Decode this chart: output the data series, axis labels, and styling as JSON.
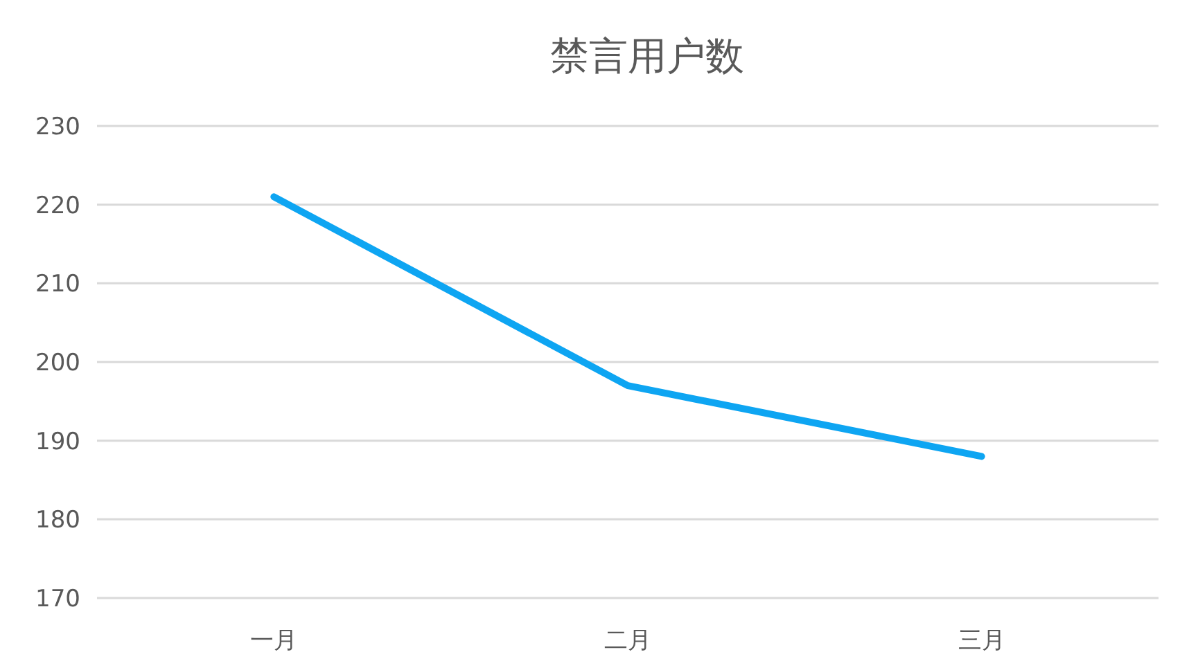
{
  "chart_data": {
    "type": "line",
    "title": "禁言用户数",
    "categories": [
      "一月",
      "二月",
      "三月"
    ],
    "series": [
      {
        "color": "#0ea5f2",
        "values": [
          221,
          197,
          188
        ]
      }
    ],
    "ylim": [
      170,
      230
    ],
    "yticks": [
      170,
      180,
      190,
      200,
      210,
      220,
      230
    ],
    "grid": "y",
    "marker": "none",
    "line_style": "solid"
  }
}
